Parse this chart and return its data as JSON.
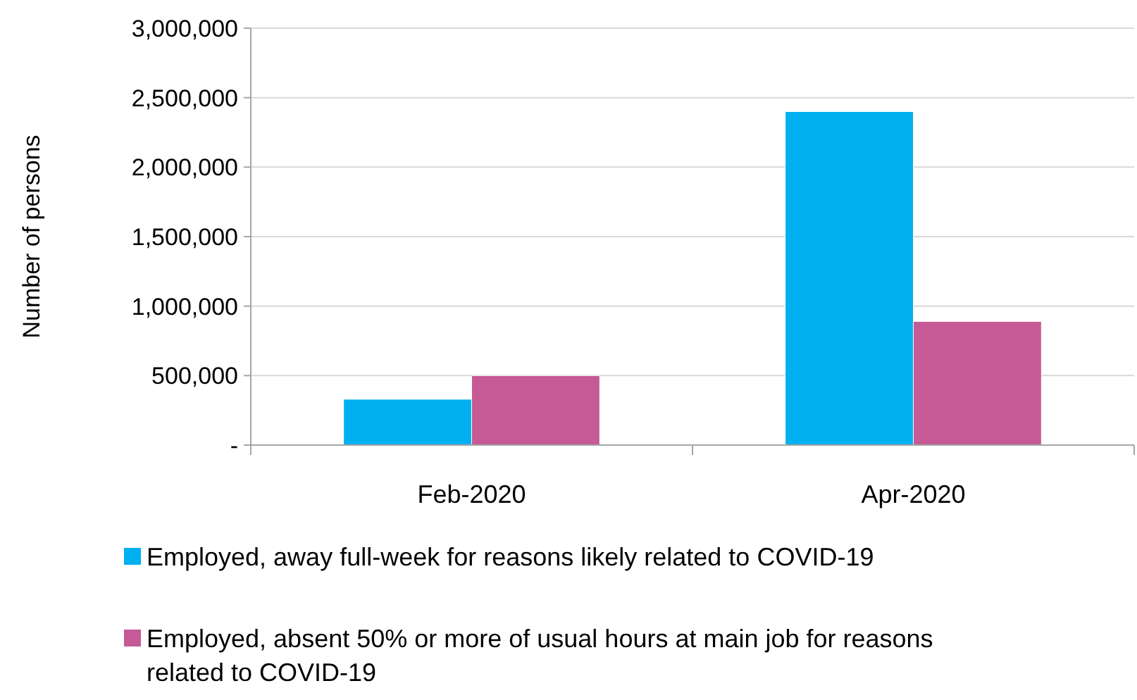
{
  "chart_data": {
    "type": "bar",
    "ylabel": "Number of persons",
    "categories": [
      "Feb-2020",
      "Apr-2020"
    ],
    "series": [
      {
        "name": "Employed, away full-week for reasons likely related to COVID-19",
        "color": "#00b0f0",
        "values": [
          330000,
          2400000
        ]
      },
      {
        "name": "Employed, absent 50% or more of usual hours at main job for reasons related to COVID-19",
        "color": "#c55a96",
        "values": [
          500000,
          890000
        ]
      }
    ],
    "ylim": [
      0,
      3000000
    ],
    "yticks": [
      {
        "value": 0,
        "label": "-"
      },
      {
        "value": 500000,
        "label": "500,000"
      },
      {
        "value": 1000000,
        "label": "1,000,000"
      },
      {
        "value": 1500000,
        "label": "1,500,000"
      },
      {
        "value": 2000000,
        "label": "2,000,000"
      },
      {
        "value": 2500000,
        "label": "2,500,000"
      },
      {
        "value": 3000000,
        "label": "3,000,000"
      }
    ],
    "grid": "y",
    "legend": "bottom"
  }
}
